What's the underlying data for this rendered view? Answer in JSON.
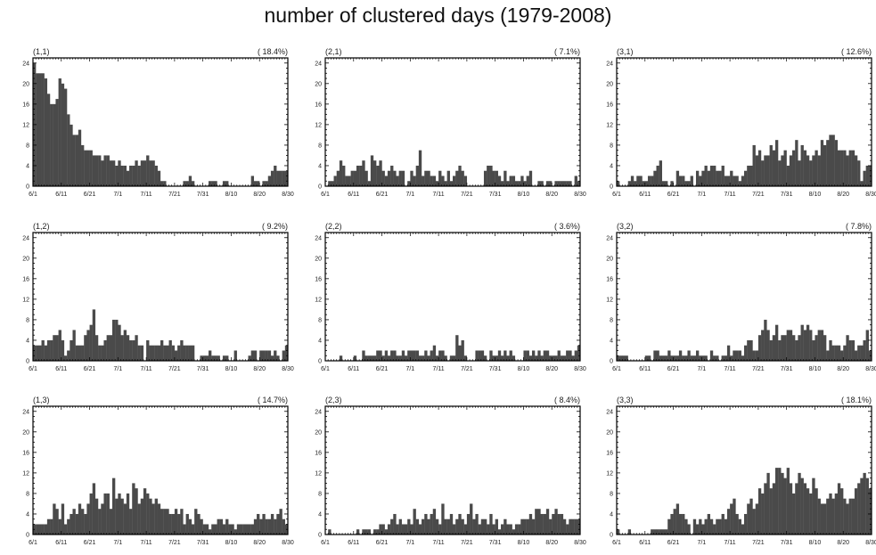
{
  "title": "number of clustered days (1979-2008)",
  "colors": {
    "bar": "#4a4a4a",
    "axis": "#000000",
    "background": "#ffffff"
  },
  "chart_data": [
    {
      "type": "bar",
      "id": "(1,1)",
      "percent": "( 18.4%)",
      "ylim": [
        0,
        25
      ],
      "yticks": [
        0,
        4,
        8,
        12,
        16,
        20,
        24
      ],
      "xtick_labels": [
        "6/1",
        "6/11",
        "6/21",
        "7/1",
        "7/11",
        "7/21",
        "7/31",
        "8/10",
        "8/20",
        "8/30"
      ],
      "values": [
        24,
        22,
        22,
        22,
        21,
        18,
        16,
        16,
        17,
        21,
        20,
        19,
        14,
        12,
        10,
        10,
        11,
        8,
        7,
        7,
        7,
        6,
        6,
        6,
        5,
        6,
        6,
        5,
        5,
        4,
        5,
        4,
        4,
        3,
        4,
        4,
        5,
        4,
        5,
        5,
        6,
        5,
        5,
        4,
        3,
        1,
        1,
        0,
        0,
        0,
        0,
        0,
        0,
        1,
        1,
        2,
        1,
        0,
        0,
        0,
        0,
        0,
        1,
        1,
        1,
        0,
        0,
        1,
        1,
        0,
        0,
        0,
        0,
        0,
        0,
        0,
        0,
        2,
        1,
        1,
        0,
        1,
        1,
        2,
        3,
        4,
        3,
        3,
        3,
        3
      ]
    },
    {
      "type": "bar",
      "id": "(2,1)",
      "percent": "( 7.1%)",
      "ylim": [
        0,
        25
      ],
      "yticks": [
        0,
        4,
        8,
        12,
        16,
        20,
        24
      ],
      "xtick_labels": [
        "6/1",
        "6/11",
        "6/21",
        "7/1",
        "7/11",
        "7/21",
        "7/31",
        "8/10",
        "8/20",
        "8/30"
      ],
      "values": [
        0,
        1,
        1,
        2,
        3,
        5,
        4,
        2,
        2,
        3,
        3,
        4,
        4,
        5,
        3,
        1,
        6,
        5,
        4,
        5,
        3,
        2,
        3,
        4,
        3,
        2,
        3,
        3,
        0,
        1,
        3,
        2,
        4,
        7,
        2,
        3,
        3,
        2,
        2,
        1,
        3,
        2,
        1,
        3,
        1,
        2,
        3,
        4,
        3,
        2,
        0,
        0,
        0,
        0,
        0,
        0,
        3,
        4,
        4,
        3,
        3,
        2,
        1,
        3,
        1,
        2,
        2,
        1,
        1,
        2,
        1,
        2,
        3,
        0,
        0,
        1,
        1,
        0,
        1,
        1,
        0,
        1,
        1,
        1,
        1,
        1,
        1,
        0,
        2,
        1
      ]
    },
    {
      "type": "bar",
      "id": "(3,1)",
      "percent": "( 12.6%)",
      "ylim": [
        0,
        25
      ],
      "yticks": [
        0,
        4,
        8,
        12,
        16,
        20,
        24
      ],
      "xtick_labels": [
        "6/1",
        "6/11",
        "6/21",
        "7/1",
        "7/11",
        "7/21",
        "7/31",
        "8/10",
        "8/20",
        "8/30"
      ],
      "values": [
        1,
        0,
        0,
        0,
        1,
        2,
        1,
        2,
        2,
        1,
        1,
        2,
        2,
        3,
        4,
        5,
        1,
        1,
        0,
        1,
        0,
        3,
        2,
        2,
        1,
        1,
        2,
        0,
        3,
        2,
        3,
        4,
        3,
        4,
        4,
        3,
        3,
        4,
        2,
        2,
        3,
        2,
        2,
        1,
        2,
        3,
        4,
        4,
        8,
        6,
        7,
        5,
        6,
        6,
        8,
        7,
        9,
        5,
        6,
        7,
        4,
        6,
        7,
        9,
        5,
        8,
        7,
        6,
        5,
        6,
        7,
        6,
        9,
        8,
        9,
        10,
        10,
        9,
        7,
        7,
        7,
        6,
        7,
        7,
        6,
        5,
        1,
        3,
        4,
        4
      ]
    },
    {
      "type": "bar",
      "id": "(1,2)",
      "percent": "( 9.2%)",
      "ylim": [
        0,
        25
      ],
      "yticks": [
        0,
        4,
        8,
        12,
        16,
        20,
        24
      ],
      "xtick_labels": [
        "6/1",
        "6/11",
        "6/21",
        "7/1",
        "7/11",
        "7/21",
        "7/31",
        "8/10",
        "8/20",
        "8/30"
      ],
      "values": [
        3,
        3,
        3,
        4,
        3,
        4,
        4,
        5,
        5,
        6,
        4,
        1,
        2,
        4,
        6,
        3,
        3,
        3,
        5,
        6,
        7,
        10,
        5,
        3,
        3,
        4,
        5,
        5,
        8,
        8,
        7,
        5,
        6,
        5,
        4,
        4,
        5,
        3,
        3,
        0,
        4,
        3,
        3,
        3,
        3,
        4,
        3,
        3,
        4,
        3,
        2,
        3,
        4,
        3,
        3,
        3,
        3,
        0,
        0,
        1,
        1,
        1,
        2,
        1,
        1,
        1,
        0,
        1,
        1,
        0,
        0,
        2,
        0,
        0,
        0,
        0,
        1,
        2,
        2,
        0,
        2,
        2,
        2,
        2,
        1,
        2,
        1,
        0,
        2,
        3
      ]
    },
    {
      "type": "bar",
      "id": "(2,2)",
      "percent": "( 3.6%)",
      "ylim": [
        0,
        25
      ],
      "yticks": [
        0,
        4,
        8,
        12,
        16,
        20,
        24
      ],
      "xtick_labels": [
        "6/1",
        "6/11",
        "6/21",
        "7/1",
        "7/11",
        "7/21",
        "7/31",
        "8/10",
        "8/20",
        "8/30"
      ],
      "values": [
        0,
        0,
        0,
        0,
        0,
        1,
        0,
        0,
        0,
        0,
        1,
        0,
        0,
        2,
        1,
        1,
        1,
        1,
        2,
        2,
        1,
        2,
        1,
        2,
        2,
        1,
        1,
        2,
        1,
        2,
        2,
        2,
        2,
        1,
        1,
        2,
        1,
        2,
        3,
        1,
        2,
        2,
        1,
        0,
        1,
        1,
        5,
        3,
        4,
        1,
        0,
        0,
        0,
        2,
        2,
        2,
        1,
        0,
        2,
        1,
        1,
        2,
        1,
        2,
        1,
        2,
        1,
        0,
        0,
        0,
        2,
        2,
        1,
        2,
        1,
        2,
        1,
        2,
        2,
        1,
        1,
        1,
        2,
        1,
        1,
        2,
        2,
        1,
        2,
        3
      ]
    },
    {
      "type": "bar",
      "id": "(3,2)",
      "percent": "( 7.8%)",
      "ylim": [
        0,
        25
      ],
      "yticks": [
        0,
        4,
        8,
        12,
        16,
        20,
        24
      ],
      "xtick_labels": [
        "6/1",
        "6/11",
        "6/21",
        "7/1",
        "7/11",
        "7/21",
        "7/31",
        "8/10",
        "8/20",
        "8/30"
      ],
      "values": [
        1,
        1,
        1,
        1,
        0,
        0,
        0,
        0,
        0,
        0,
        1,
        1,
        0,
        2,
        2,
        1,
        1,
        1,
        2,
        1,
        1,
        1,
        2,
        1,
        1,
        2,
        1,
        1,
        2,
        1,
        1,
        1,
        0,
        2,
        1,
        1,
        0,
        1,
        1,
        3,
        1,
        2,
        2,
        2,
        1,
        3,
        4,
        4,
        2,
        2,
        5,
        6,
        8,
        6,
        4,
        5,
        7,
        4,
        5,
        5,
        6,
        6,
        5,
        4,
        5,
        7,
        6,
        7,
        6,
        4,
        5,
        6,
        6,
        5,
        2,
        4,
        3,
        3,
        3,
        2,
        3,
        5,
        4,
        4,
        2,
        3,
        3,
        4,
        6,
        2
      ]
    },
    {
      "type": "bar",
      "id": "(1,3)",
      "percent": "( 14.7%)",
      "ylim": [
        0,
        25
      ],
      "yticks": [
        0,
        4,
        8,
        12,
        16,
        20,
        24
      ],
      "xtick_labels": [
        "6/1",
        "6/11",
        "6/21",
        "7/1",
        "7/11",
        "7/21",
        "7/31",
        "8/10",
        "8/20",
        "8/30"
      ],
      "values": [
        2,
        2,
        2,
        2,
        2,
        3,
        3,
        6,
        5,
        3,
        6,
        2,
        3,
        4,
        5,
        4,
        6,
        5,
        4,
        6,
        8,
        10,
        7,
        5,
        6,
        8,
        8,
        5,
        11,
        7,
        8,
        7,
        6,
        8,
        5,
        10,
        9,
        6,
        7,
        9,
        8,
        7,
        6,
        7,
        6,
        5,
        5,
        5,
        4,
        4,
        5,
        4,
        5,
        2,
        4,
        3,
        2,
        5,
        4,
        3,
        2,
        2,
        1,
        2,
        2,
        3,
        3,
        2,
        3,
        2,
        2,
        1,
        2,
        2,
        2,
        2,
        2,
        2,
        3,
        4,
        3,
        4,
        3,
        3,
        4,
        3,
        4,
        5,
        3,
        2
      ]
    },
    {
      "type": "bar",
      "id": "(2,3)",
      "percent": "( 8.4%)",
      "ylim": [
        0,
        25
      ],
      "yticks": [
        0,
        4,
        8,
        12,
        16,
        20,
        24
      ],
      "xtick_labels": [
        "6/1",
        "6/11",
        "6/21",
        "7/1",
        "7/11",
        "7/21",
        "7/31",
        "8/10",
        "8/20",
        "8/30"
      ],
      "values": [
        0,
        1,
        0,
        0,
        0,
        0,
        0,
        0,
        0,
        0,
        0,
        1,
        0,
        1,
        1,
        1,
        0,
        1,
        1,
        2,
        2,
        1,
        2,
        3,
        4,
        2,
        3,
        2,
        2,
        3,
        2,
        5,
        3,
        2,
        3,
        4,
        3,
        4,
        5,
        3,
        2,
        6,
        3,
        3,
        4,
        2,
        3,
        4,
        3,
        2,
        4,
        6,
        3,
        4,
        2,
        3,
        3,
        2,
        4,
        2,
        3,
        1,
        2,
        3,
        2,
        2,
        1,
        2,
        2,
        3,
        3,
        3,
        4,
        3,
        5,
        5,
        4,
        4,
        5,
        3,
        4,
        5,
        4,
        4,
        3,
        2,
        3,
        3,
        3,
        3
      ]
    },
    {
      "type": "bar",
      "id": "(3,3)",
      "percent": "( 18.1%)",
      "ylim": [
        0,
        25
      ],
      "yticks": [
        0,
        4,
        8,
        12,
        16,
        20,
        24
      ],
      "xtick_labels": [
        "6/1",
        "6/11",
        "6/21",
        "7/1",
        "7/11",
        "7/21",
        "7/31",
        "8/10",
        "8/20",
        "8/30"
      ],
      "values": [
        1,
        0,
        0,
        0,
        1,
        0,
        0,
        0,
        0,
        0,
        0,
        0,
        1,
        1,
        1,
        1,
        1,
        1,
        3,
        4,
        5,
        6,
        4,
        4,
        3,
        2,
        0,
        3,
        2,
        3,
        2,
        3,
        4,
        3,
        2,
        3,
        3,
        4,
        3,
        5,
        6,
        7,
        4,
        3,
        2,
        4,
        6,
        7,
        5,
        6,
        9,
        8,
        10,
        12,
        9,
        10,
        13,
        13,
        12,
        11,
        13,
        10,
        8,
        10,
        12,
        11,
        10,
        9,
        8,
        11,
        9,
        7,
        6,
        6,
        7,
        8,
        7,
        8,
        10,
        9,
        7,
        6,
        7,
        7,
        9,
        10,
        11,
        12,
        11,
        9
      ]
    }
  ]
}
